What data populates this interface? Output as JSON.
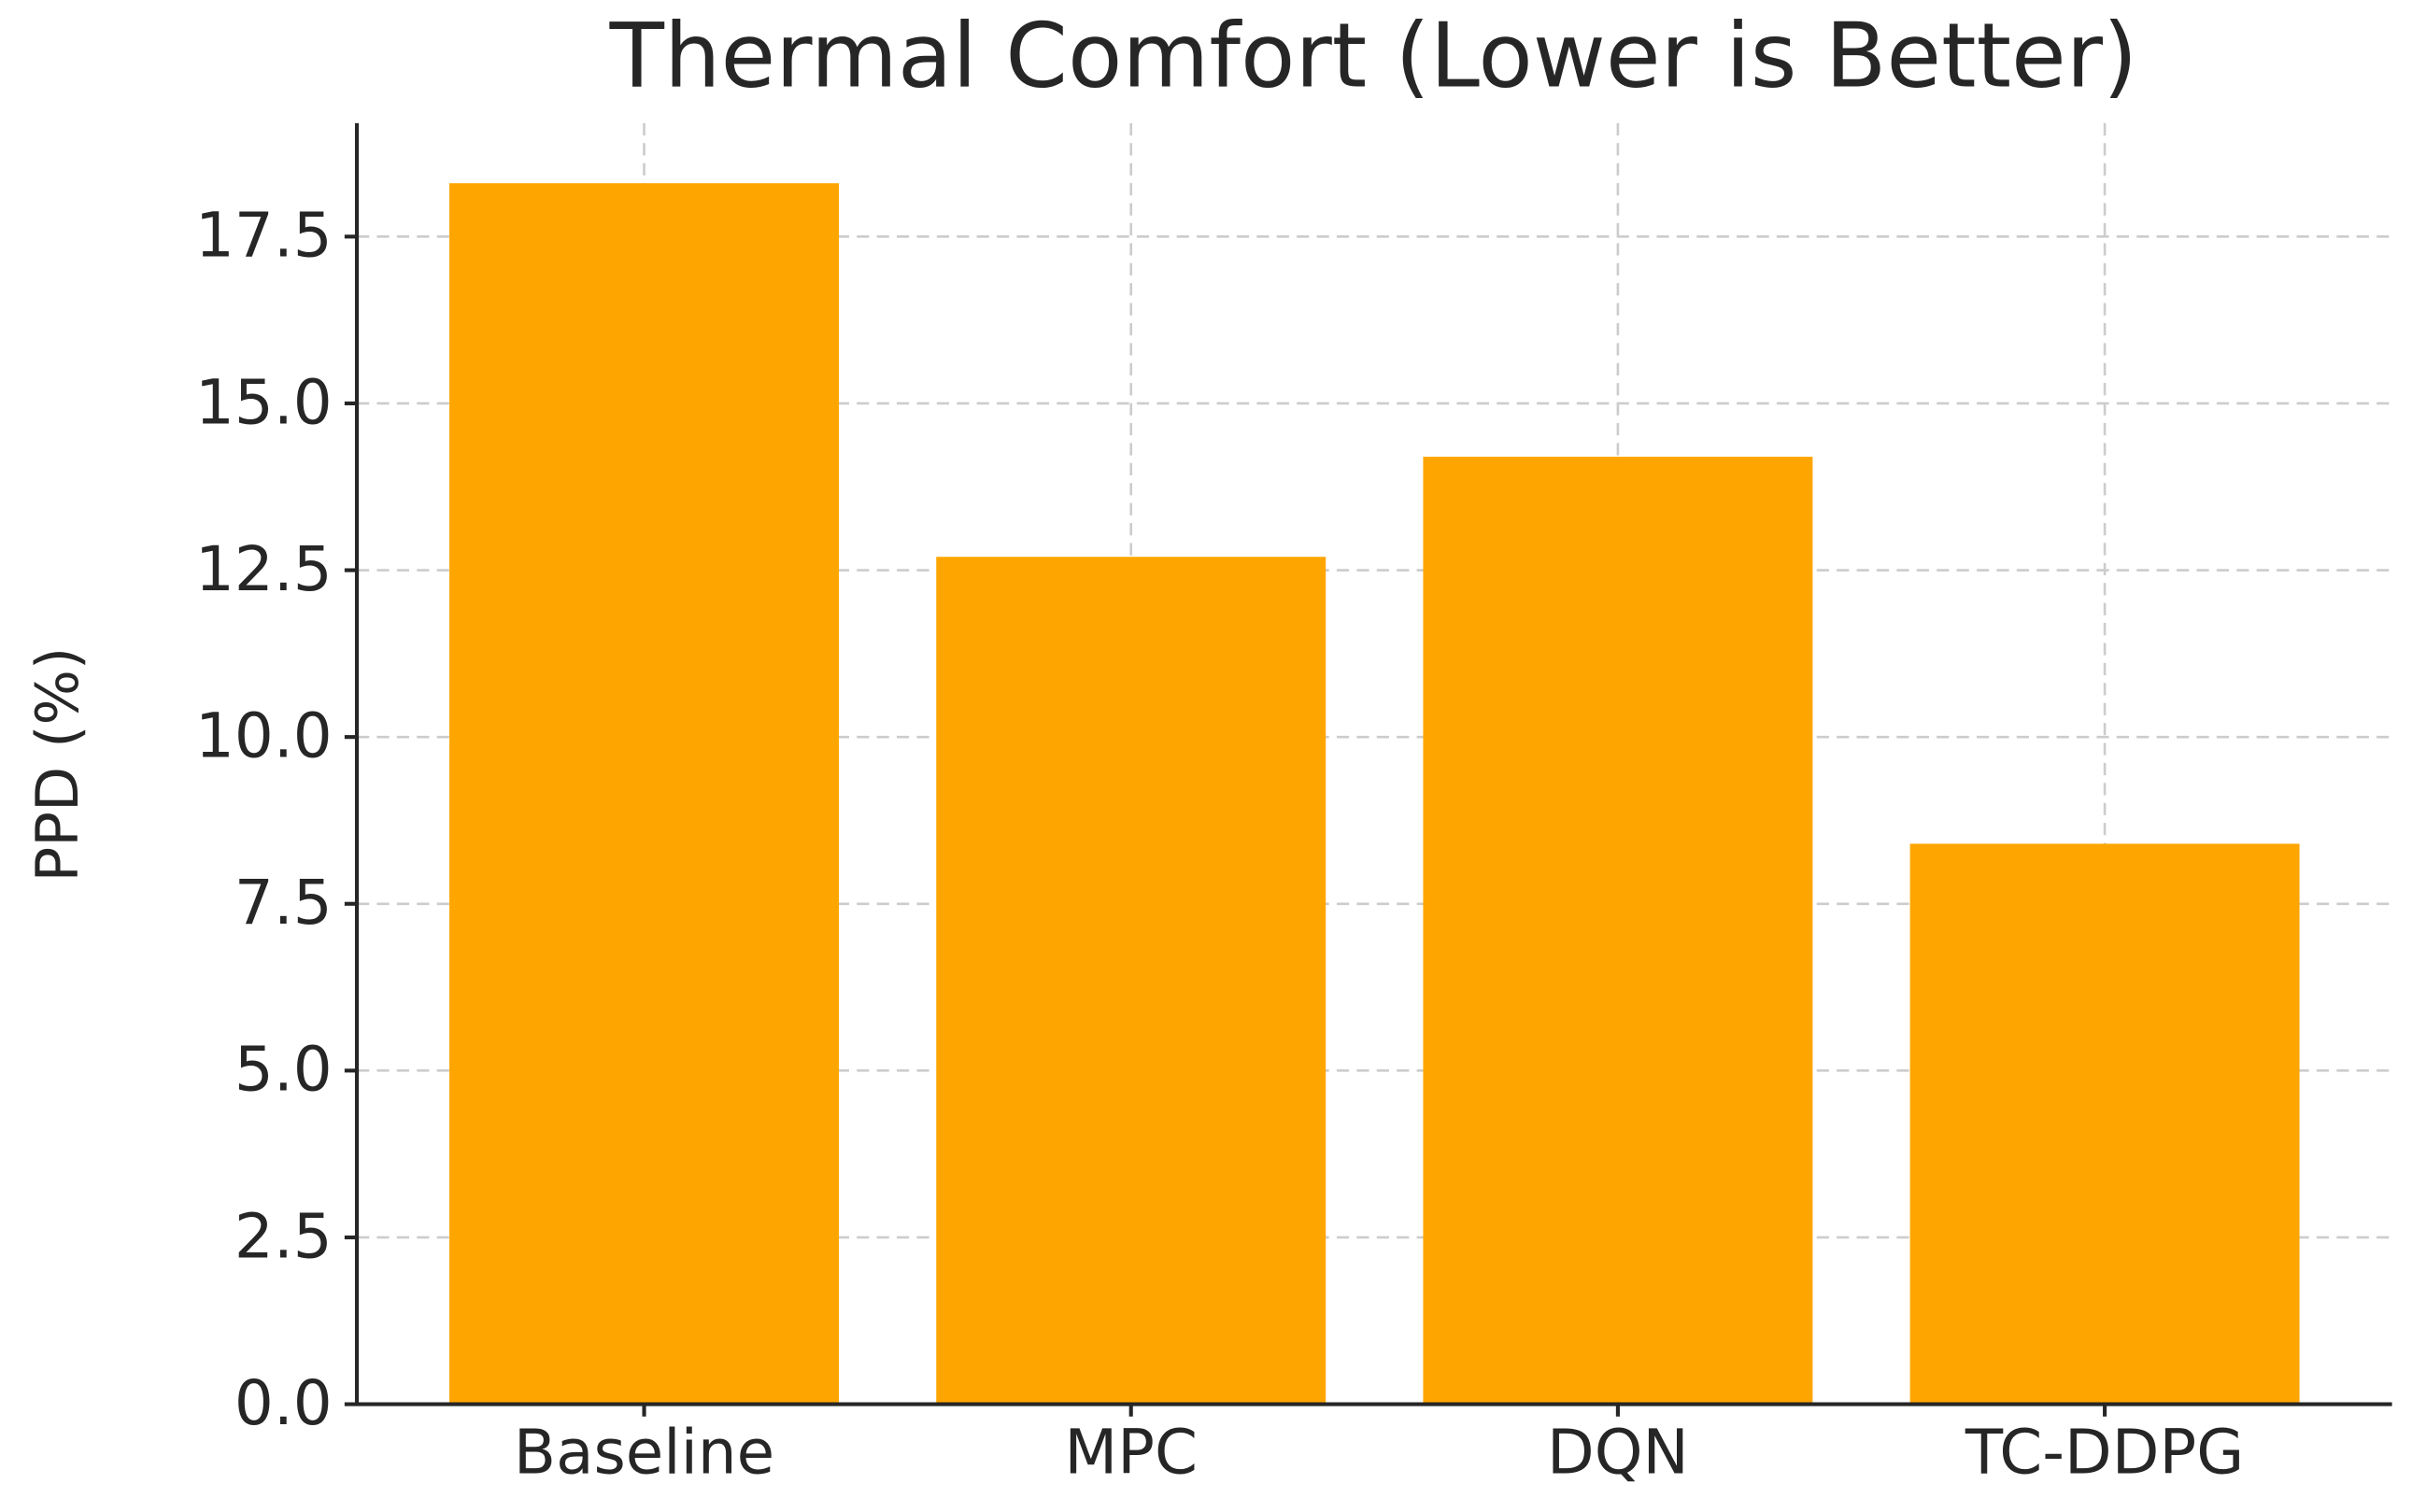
{
  "chart_data": {
    "type": "bar",
    "title": "Thermal Comfort (Lower is Better)",
    "ylabel": "PPD (%)",
    "categories": [
      "Baseline",
      "MPC",
      "DQN",
      "TC-DDPG"
    ],
    "values": [
      18.3,
      12.7,
      14.2,
      8.4
    ],
    "color": "#ffa500",
    "ylim": [
      0,
      19.2
    ],
    "yticks": [
      {
        "value": 0,
        "label": "0.0"
      },
      2.5,
      {
        "value": 5,
        "label": "5.0"
      },
      7.5,
      {
        "value": 10,
        "label": "10.0"
      },
      12.5,
      {
        "value": 15,
        "label": "15.0"
      },
      17.5
    ],
    "grid": true
  }
}
